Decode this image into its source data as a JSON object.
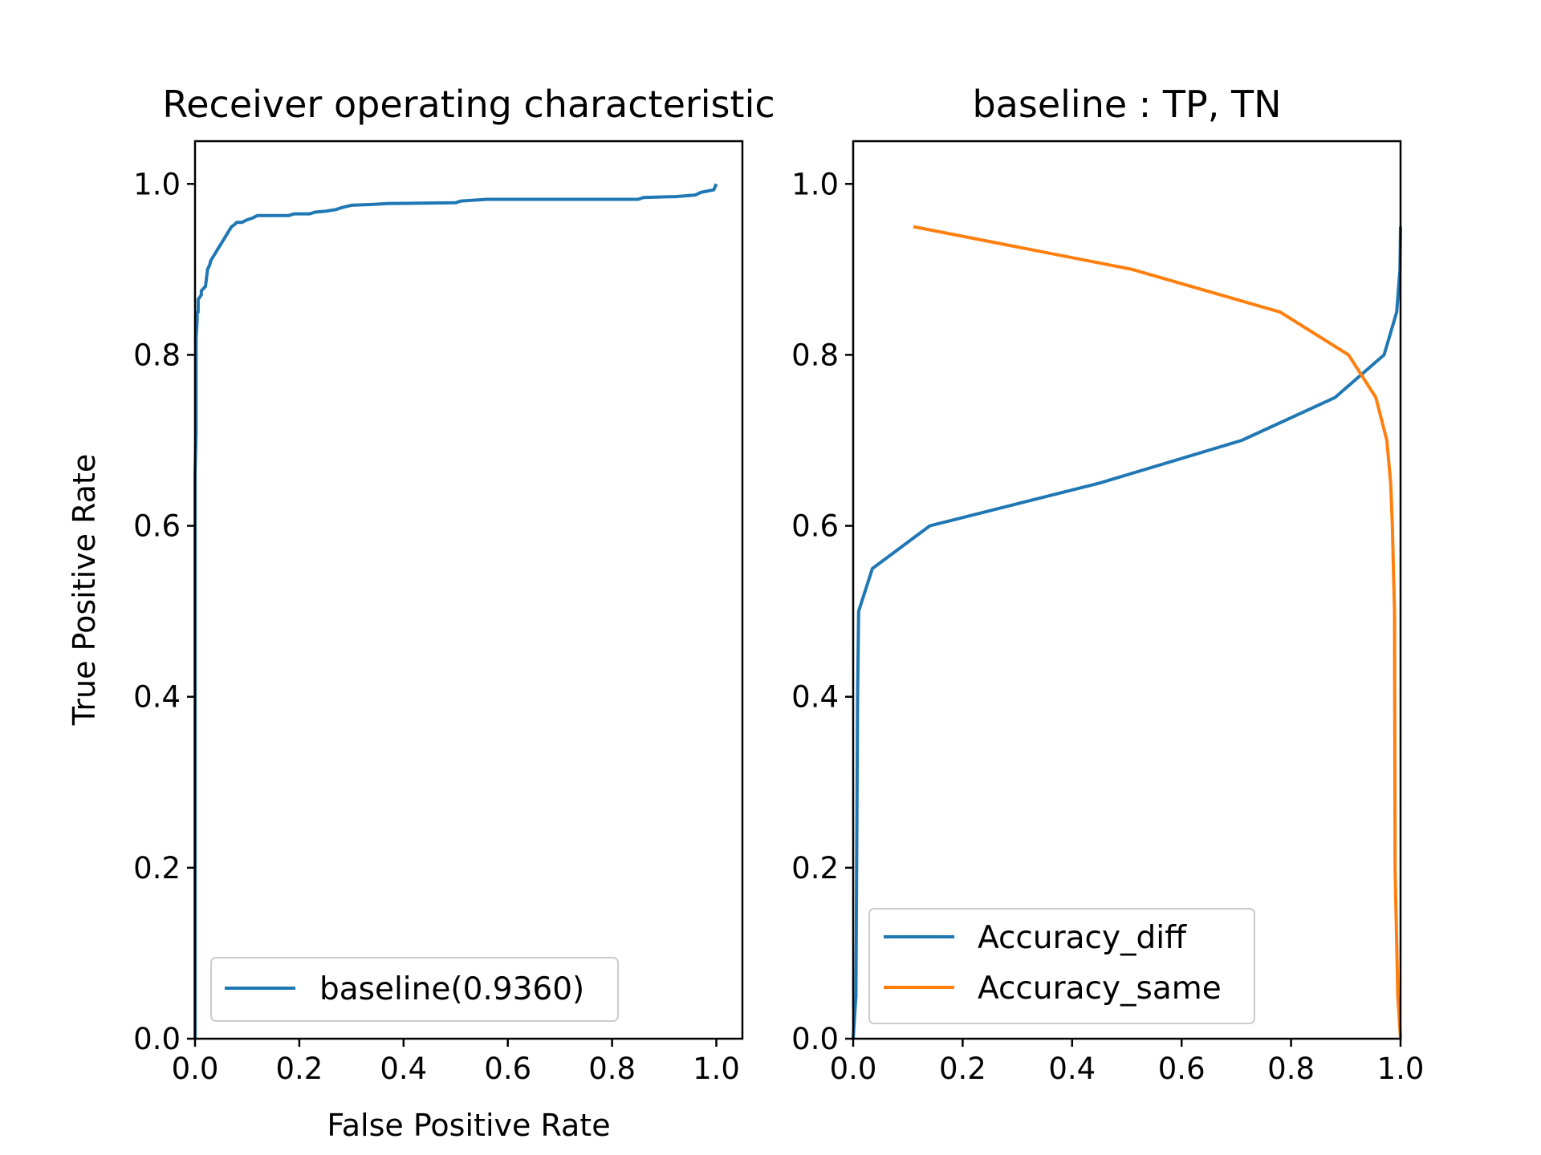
{
  "figure": {
    "background": "#ffffff"
  },
  "chart_data": [
    {
      "type": "line",
      "title": "Receiver operating characteristic",
      "xlabel": "False Positive Rate",
      "ylabel": "True Positive Rate",
      "xlim": [
        0,
        1.05
      ],
      "ylim": [
        0,
        1.05
      ],
      "xticks": [
        "0.0",
        "0.2",
        "0.4",
        "0.6",
        "0.8",
        "1.0"
      ],
      "yticks": [
        "0.0",
        "0.2",
        "0.4",
        "0.6",
        "0.8",
        "1.0"
      ],
      "grid": false,
      "legend_position": "lower-right",
      "series": [
        {
          "name": "baseline(0.9360)",
          "color": "#1f77b4",
          "x": [
            0,
            0,
            0.002,
            0.002,
            0.004,
            0.004,
            0.006,
            0.006,
            0.012,
            0.012,
            0.02,
            0.022,
            0.024,
            0.028,
            0.03,
            0.035,
            0.04,
            0.045,
            0.05,
            0.055,
            0.06,
            0.065,
            0.07,
            0.075,
            0.08,
            0.09,
            0.1,
            0.11,
            0.12,
            0.18,
            0.19,
            0.22,
            0.23,
            0.25,
            0.27,
            0.28,
            0.3,
            0.34,
            0.37,
            0.5,
            0.51,
            0.56,
            0.85,
            0.86,
            0.91,
            0.92,
            0.96,
            0.97,
            0.995,
            1.0
          ],
          "y": [
            0,
            0.66,
            0.71,
            0.82,
            0.84,
            0.85,
            0.85,
            0.865,
            0.87,
            0.875,
            0.88,
            0.89,
            0.9,
            0.905,
            0.91,
            0.915,
            0.92,
            0.925,
            0.93,
            0.935,
            0.94,
            0.945,
            0.95,
            0.952,
            0.955,
            0.955,
            0.958,
            0.96,
            0.963,
            0.963,
            0.965,
            0.965,
            0.967,
            0.968,
            0.97,
            0.972,
            0.975,
            0.976,
            0.977,
            0.978,
            0.98,
            0.982,
            0.982,
            0.984,
            0.985,
            0.985,
            0.987,
            0.99,
            0.993,
            1.0
          ]
        }
      ]
    },
    {
      "type": "line",
      "title": "baseline : TP, TN",
      "xlabel": "",
      "ylabel": "",
      "xlim": [
        0,
        1.0
      ],
      "ylim": [
        0,
        1.05
      ],
      "xticks": [
        "0.0",
        "0.2",
        "0.4",
        "0.6",
        "0.8",
        "1.0"
      ],
      "yticks": [
        "0.0",
        "0.2",
        "0.4",
        "0.6",
        "0.8",
        "1.0"
      ],
      "grid": false,
      "legend_position": "lower-left",
      "series": [
        {
          "name": "Accuracy_diff",
          "color": "#1f77b4",
          "x": [
            0.0,
            0.005,
            0.008,
            0.01,
            0.035,
            0.14,
            0.45,
            0.71,
            0.88,
            0.97,
            0.993,
            0.999,
            1.0
          ],
          "y": [
            0.0,
            0.05,
            0.4,
            0.5,
            0.55,
            0.6,
            0.65,
            0.7,
            0.75,
            0.8,
            0.85,
            0.9,
            0.95
          ]
        },
        {
          "name": "Accuracy_same",
          "color": "#ff7f0e",
          "x": [
            0.11,
            0.51,
            0.78,
            0.905,
            0.955,
            0.975,
            0.982,
            0.985,
            0.987,
            0.989,
            0.99,
            0.995,
            1.0
          ],
          "y": [
            0.95,
            0.9,
            0.85,
            0.8,
            0.75,
            0.7,
            0.65,
            0.6,
            0.55,
            0.5,
            0.2,
            0.05,
            0.0
          ]
        }
      ]
    }
  ]
}
